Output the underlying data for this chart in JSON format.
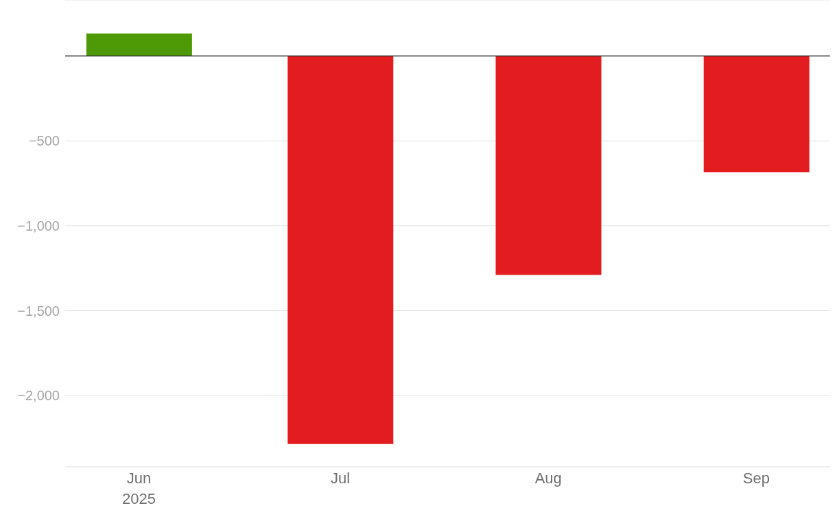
{
  "chart_data": {
    "type": "bar",
    "x": [
      "2025-06",
      "2025-07",
      "2025-08",
      "2025-09"
    ],
    "values": [
      133,
      -2286,
      -1290,
      -685
    ],
    "colors": [
      "#4e9a06",
      "#e31c1f",
      "#e31c1f",
      "#e31c1f"
    ],
    "xlim": [
      "2025-05-21",
      "2025-09-12"
    ],
    "xticks": [
      {
        "value": "2025-06",
        "label": "Jun\n2025"
      },
      {
        "value": "2025-07",
        "label": "Jul"
      },
      {
        "value": "2025-08",
        "label": "Aug"
      },
      {
        "value": "2025-09",
        "label": "Sep"
      }
    ],
    "ylim": [
      -2420,
      330
    ],
    "yticks": [
      {
        "value": -500,
        "label": "−500"
      },
      {
        "value": -1000,
        "label": "−1,000"
      },
      {
        "value": -1500,
        "label": "−1,500"
      },
      {
        "value": -2000,
        "label": "−2,000"
      }
    ],
    "grid": "y",
    "ref_lines": [
      {
        "axis": "y",
        "value": 0,
        "color": "#333333"
      }
    ]
  }
}
